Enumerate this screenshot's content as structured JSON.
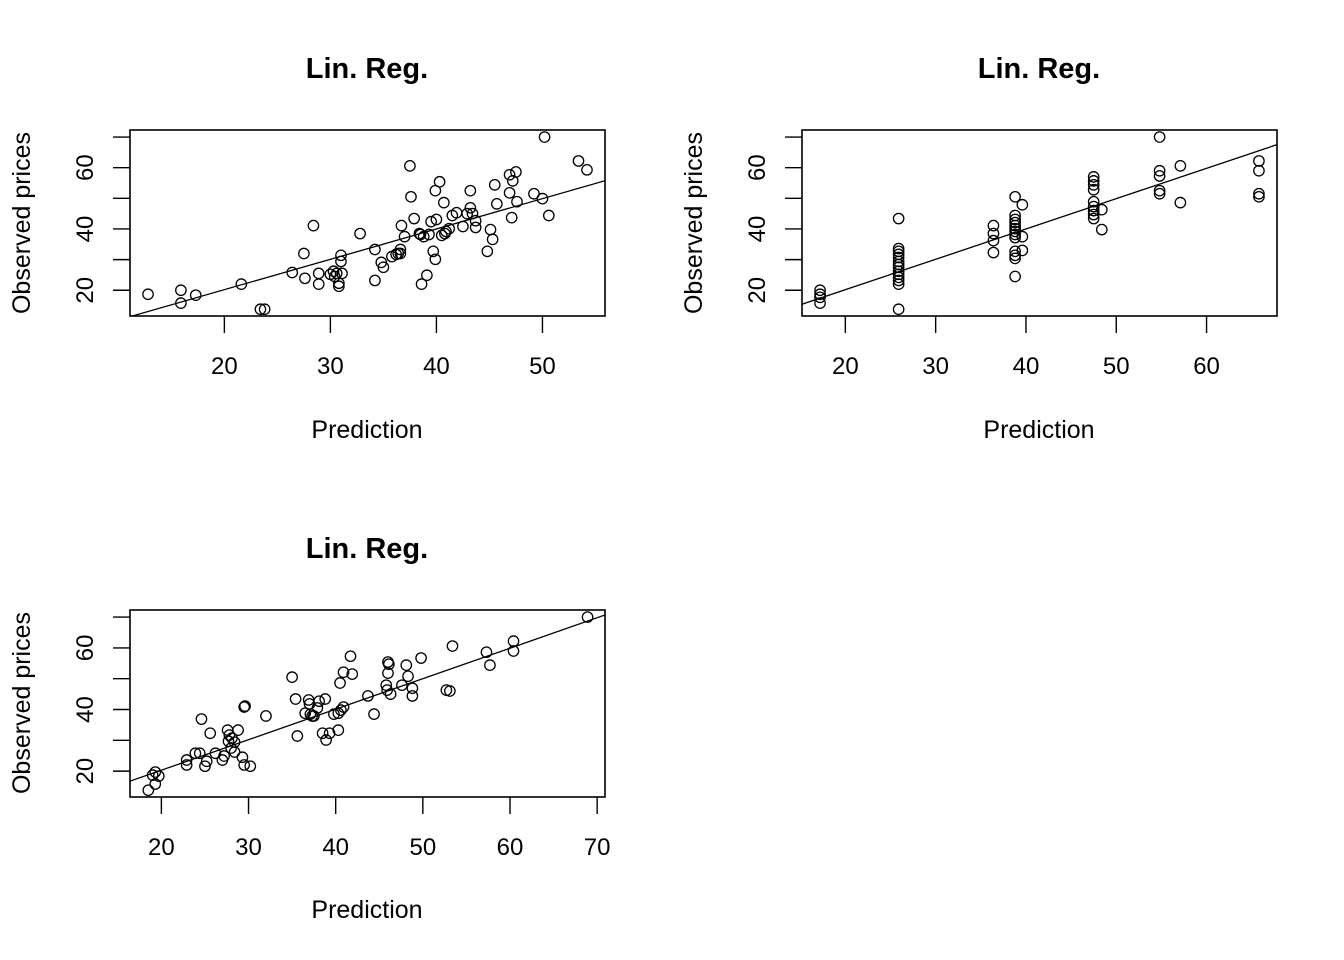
{
  "figure": {
    "layout": "2x2 grid, 3 panels",
    "colors": {
      "background": "#ffffff",
      "foreground": "#000000"
    }
  },
  "chart_data": [
    {
      "type": "scatter",
      "title": "Lin. Reg.",
      "xlabel": "Prediction",
      "ylabel": "Observed prices",
      "xlim": [
        11.1,
        55.9
      ],
      "ylim": [
        11.6,
        72.3
      ],
      "xticks": [
        20,
        30,
        40,
        50
      ],
      "xtick_labels": [
        "20",
        "30",
        "40",
        "50"
      ],
      "yticks": [
        20,
        30,
        40,
        50,
        60,
        70
      ],
      "ytick_labels": [
        "20",
        "",
        "40",
        "",
        "60",
        ""
      ],
      "grid": false,
      "marker": "open-circle",
      "regression_line": {
        "intercept": 0.4,
        "slope": 0.99
      },
      "points": [
        [
          12.8,
          18.7
        ],
        [
          15.9,
          20.0
        ],
        [
          15.9,
          15.8
        ],
        [
          17.3,
          18.4
        ],
        [
          21.6,
          22.0
        ],
        [
          23.4,
          13.8
        ],
        [
          23.8,
          13.8
        ],
        [
          26.4,
          25.8
        ],
        [
          27.5,
          32.0
        ],
        [
          27.6,
          23.9
        ],
        [
          28.4,
          41.1
        ],
        [
          28.9,
          25.5
        ],
        [
          28.9,
          22.0
        ],
        [
          30.0,
          25.2
        ],
        [
          30.3,
          26.2
        ],
        [
          30.4,
          24.5
        ],
        [
          30.6,
          25.5
        ],
        [
          30.8,
          22.3
        ],
        [
          30.8,
          21.3
        ],
        [
          31.0,
          31.4
        ],
        [
          31.0,
          29.4
        ],
        [
          31.1,
          25.5
        ],
        [
          32.8,
          38.5
        ],
        [
          34.2,
          33.3
        ],
        [
          34.2,
          23.2
        ],
        [
          34.8,
          29.1
        ],
        [
          35.0,
          27.5
        ],
        [
          35.8,
          31.0
        ],
        [
          36.2,
          31.7
        ],
        [
          36.4,
          32.0
        ],
        [
          36.6,
          32.0
        ],
        [
          36.6,
          33.3
        ],
        [
          36.7,
          41.1
        ],
        [
          37.0,
          37.5
        ],
        [
          37.5,
          60.6
        ],
        [
          37.6,
          50.5
        ],
        [
          37.9,
          43.4
        ],
        [
          38.4,
          38.5
        ],
        [
          38.5,
          38.2
        ],
        [
          38.6,
          22.0
        ],
        [
          38.8,
          37.5
        ],
        [
          39.1,
          24.9
        ],
        [
          39.3,
          38.2
        ],
        [
          39.5,
          42.4
        ],
        [
          39.7,
          32.7
        ],
        [
          39.9,
          30.1
        ],
        [
          39.9,
          52.5
        ],
        [
          40.0,
          43.1
        ],
        [
          40.3,
          55.4
        ],
        [
          40.5,
          37.9
        ],
        [
          40.7,
          48.6
        ],
        [
          40.8,
          38.5
        ],
        [
          40.9,
          39.2
        ],
        [
          41.2,
          40.1
        ],
        [
          41.5,
          44.4
        ],
        [
          41.9,
          45.3
        ],
        [
          42.5,
          40.8
        ],
        [
          42.9,
          45.0
        ],
        [
          43.2,
          52.5
        ],
        [
          43.2,
          46.9
        ],
        [
          43.4,
          45.0
        ],
        [
          43.7,
          42.7
        ],
        [
          43.7,
          40.5
        ],
        [
          44.8,
          32.7
        ],
        [
          45.1,
          39.8
        ],
        [
          45.3,
          36.6
        ],
        [
          45.5,
          54.4
        ],
        [
          45.7,
          48.2
        ],
        [
          46.9,
          57.7
        ],
        [
          46.9,
          51.8
        ],
        [
          47.1,
          43.7
        ],
        [
          47.2,
          55.7
        ],
        [
          47.5,
          58.6
        ],
        [
          47.6,
          48.9
        ],
        [
          49.2,
          51.5
        ],
        [
          50.0,
          49.9
        ],
        [
          50.2,
          70.0
        ],
        [
          50.6,
          44.4
        ],
        [
          53.4,
          62.2
        ],
        [
          54.2,
          59.3
        ]
      ]
    },
    {
      "type": "scatter",
      "title": "Lin. Reg.",
      "xlabel": "Prediction",
      "ylabel": "Observed prices",
      "xlim": [
        15.2,
        67.8
      ],
      "ylim": [
        11.6,
        72.3
      ],
      "xticks": [
        20,
        30,
        40,
        50,
        60
      ],
      "xtick_labels": [
        "20",
        "30",
        "40",
        "50",
        "60"
      ],
      "yticks": [
        20,
        30,
        40,
        50,
        60,
        70
      ],
      "ytick_labels": [
        "20",
        "",
        "40",
        "",
        "60",
        ""
      ],
      "grid": false,
      "marker": "open-circle",
      "regression_line": {
        "intercept": 0.4,
        "slope": 0.99
      },
      "points": [
        [
          17.2,
          20.0
        ],
        [
          17.2,
          18.7
        ],
        [
          17.2,
          17.7
        ],
        [
          17.2,
          15.8
        ],
        [
          25.9,
          43.4
        ],
        [
          25.9,
          33.6
        ],
        [
          25.9,
          32.7
        ],
        [
          25.9,
          31.7
        ],
        [
          25.9,
          30.7
        ],
        [
          25.9,
          29.4
        ],
        [
          25.9,
          28.4
        ],
        [
          25.9,
          27.5
        ],
        [
          25.9,
          26.2
        ],
        [
          25.9,
          25.2
        ],
        [
          25.9,
          24.2
        ],
        [
          25.9,
          23.2
        ],
        [
          25.9,
          22.0
        ],
        [
          25.9,
          13.8
        ],
        [
          36.4,
          41.1
        ],
        [
          36.4,
          38.5
        ],
        [
          36.4,
          36.2
        ],
        [
          36.4,
          32.3
        ],
        [
          38.8,
          50.5
        ],
        [
          38.8,
          44.4
        ],
        [
          38.8,
          43.1
        ],
        [
          38.8,
          42.1
        ],
        [
          38.8,
          41.1
        ],
        [
          38.8,
          40.1
        ],
        [
          38.8,
          39.2
        ],
        [
          38.8,
          38.2
        ],
        [
          38.8,
          37.2
        ],
        [
          38.8,
          32.7
        ],
        [
          38.8,
          31.4
        ],
        [
          38.8,
          30.4
        ],
        [
          38.8,
          24.5
        ],
        [
          39.6,
          47.9
        ],
        [
          39.6,
          37.5
        ],
        [
          39.6,
          33.0
        ],
        [
          47.5,
          57.0
        ],
        [
          47.5,
          55.7
        ],
        [
          47.5,
          54.4
        ],
        [
          47.5,
          52.8
        ],
        [
          47.5,
          48.9
        ],
        [
          47.5,
          47.3
        ],
        [
          47.5,
          46.0
        ],
        [
          47.5,
          44.7
        ],
        [
          47.5,
          43.4
        ],
        [
          48.4,
          46.3
        ],
        [
          48.4,
          39.8
        ],
        [
          54.8,
          70.0
        ],
        [
          54.8,
          59.0
        ],
        [
          54.8,
          57.3
        ],
        [
          54.8,
          52.5
        ],
        [
          54.8,
          51.5
        ],
        [
          57.1,
          60.6
        ],
        [
          57.1,
          48.6
        ],
        [
          65.8,
          62.2
        ],
        [
          65.8,
          59.0
        ],
        [
          65.8,
          51.5
        ],
        [
          65.8,
          50.5
        ]
      ]
    },
    {
      "type": "scatter",
      "title": "Lin. Reg.",
      "xlabel": "Prediction",
      "ylabel": "Observed prices",
      "xlim": [
        16.4,
        70.9
      ],
      "ylim": [
        11.6,
        72.3
      ],
      "xticks": [
        20,
        30,
        40,
        50,
        60,
        70
      ],
      "xtick_labels": [
        "20",
        "30",
        "40",
        "50",
        "60",
        "70"
      ],
      "yticks": [
        20,
        30,
        40,
        50,
        60,
        70
      ],
      "ytick_labels": [
        "20",
        "",
        "40",
        "",
        "60",
        ""
      ],
      "grid": false,
      "marker": "open-circle",
      "regression_line": {
        "intercept": 0.5,
        "slope": 0.99
      },
      "points": [
        [
          18.5,
          13.8
        ],
        [
          19.0,
          18.7
        ],
        [
          19.3,
          15.8
        ],
        [
          19.3,
          19.7
        ],
        [
          19.7,
          18.4
        ],
        [
          22.9,
          23.6
        ],
        [
          22.9,
          22.0
        ],
        [
          23.9,
          25.8
        ],
        [
          24.4,
          25.8
        ],
        [
          24.6,
          36.9
        ],
        [
          25.0,
          21.6
        ],
        [
          25.2,
          23.2
        ],
        [
          25.6,
          32.3
        ],
        [
          26.2,
          25.8
        ],
        [
          27.0,
          23.6
        ],
        [
          27.2,
          24.9
        ],
        [
          27.6,
          33.3
        ],
        [
          27.7,
          29.7
        ],
        [
          27.8,
          31.7
        ],
        [
          28.0,
          27.5
        ],
        [
          28.1,
          30.7
        ],
        [
          28.4,
          29.4
        ],
        [
          28.4,
          26.2
        ],
        [
          28.8,
          33.3
        ],
        [
          29.3,
          24.5
        ],
        [
          29.5,
          22.0
        ],
        [
          29.5,
          40.8
        ],
        [
          29.6,
          41.1
        ],
        [
          30.2,
          21.6
        ],
        [
          32.0,
          37.9
        ],
        [
          35.0,
          50.5
        ],
        [
          35.4,
          43.4
        ],
        [
          35.6,
          31.4
        ],
        [
          36.5,
          38.8
        ],
        [
          36.9,
          43.1
        ],
        [
          37.0,
          41.8
        ],
        [
          37.1,
          38.5
        ],
        [
          37.3,
          37.9
        ],
        [
          37.5,
          37.9
        ],
        [
          37.9,
          40.5
        ],
        [
          38.1,
          42.7
        ],
        [
          38.5,
          32.3
        ],
        [
          38.8,
          43.4
        ],
        [
          38.9,
          30.1
        ],
        [
          39.3,
          32.3
        ],
        [
          39.8,
          38.5
        ],
        [
          40.3,
          33.3
        ],
        [
          40.3,
          38.8
        ],
        [
          40.6,
          39.8
        ],
        [
          40.9,
          40.8
        ],
        [
          40.5,
          48.6
        ],
        [
          40.9,
          52.1
        ],
        [
          41.7,
          57.3
        ],
        [
          41.9,
          51.5
        ],
        [
          43.7,
          44.4
        ],
        [
          44.4,
          38.5
        ],
        [
          45.8,
          47.9
        ],
        [
          45.9,
          46.3
        ],
        [
          46.0,
          51.8
        ],
        [
          46.0,
          55.4
        ],
        [
          46.1,
          54.7
        ],
        [
          46.3,
          45.0
        ],
        [
          47.6,
          47.9
        ],
        [
          48.1,
          54.4
        ],
        [
          48.3,
          50.8
        ],
        [
          48.8,
          46.9
        ],
        [
          48.8,
          44.4
        ],
        [
          49.8,
          56.7
        ],
        [
          52.7,
          46.3
        ],
        [
          53.1,
          46.0
        ],
        [
          53.4,
          60.6
        ],
        [
          57.3,
          58.6
        ],
        [
          57.7,
          54.4
        ],
        [
          60.4,
          59.0
        ],
        [
          60.4,
          62.2
        ],
        [
          68.9,
          70.0
        ]
      ]
    }
  ]
}
